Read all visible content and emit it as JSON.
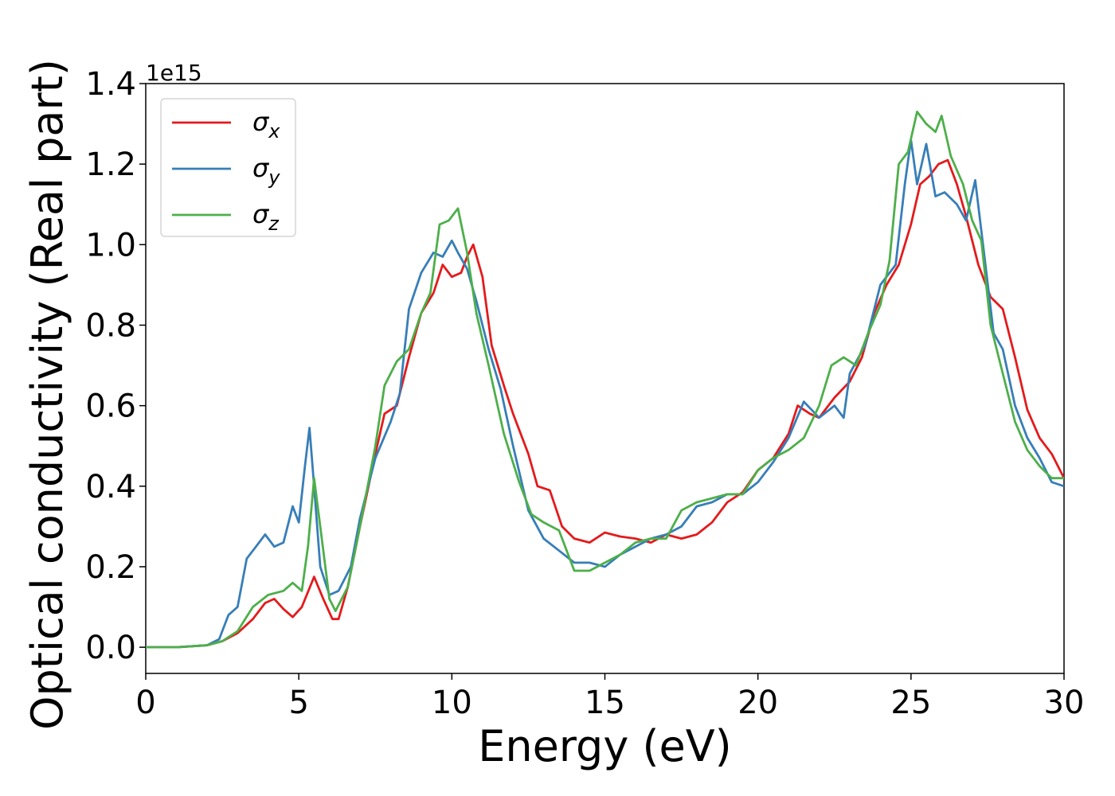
{
  "chart_data": {
    "type": "line",
    "title": "",
    "xlabel": "Energy (eV)",
    "ylabel": "Optical conductivity (Real part)",
    "y_offset_label": "1e15",
    "xlim": [
      0,
      30
    ],
    "ylim": [
      -0.065,
      1.4
    ],
    "x_ticks": [
      0,
      5,
      10,
      15,
      20,
      25,
      30
    ],
    "x_tick_labels": [
      "0",
      "5",
      "10",
      "15",
      "20",
      "25",
      "30"
    ],
    "y_ticks": [
      0.0,
      0.2,
      0.4,
      0.6,
      0.8,
      1.0,
      1.2,
      1.4
    ],
    "y_tick_labels": [
      "0.0",
      "0.2",
      "0.4",
      "0.6",
      "0.8",
      "1.0",
      "1.2",
      "1.4"
    ],
    "grid": false,
    "legend": {
      "placement": "top-left"
    },
    "series": [
      {
        "name": "σ",
        "subscript": "x",
        "color": "#e41a1c",
        "points": [
          [
            0,
            0
          ],
          [
            1,
            0
          ],
          [
            2,
            0.005
          ],
          [
            2.5,
            0.015
          ],
          [
            3,
            0.035
          ],
          [
            3.5,
            0.07
          ],
          [
            3.9,
            0.11
          ],
          [
            4.2,
            0.12
          ],
          [
            4.5,
            0.095
          ],
          [
            4.8,
            0.075
          ],
          [
            5.1,
            0.1
          ],
          [
            5.5,
            0.175
          ],
          [
            5.8,
            0.12
          ],
          [
            6.1,
            0.07
          ],
          [
            6.3,
            0.07
          ],
          [
            6.6,
            0.15
          ],
          [
            7,
            0.3
          ],
          [
            7.5,
            0.48
          ],
          [
            7.8,
            0.58
          ],
          [
            8.2,
            0.6
          ],
          [
            8.6,
            0.72
          ],
          [
            9,
            0.83
          ],
          [
            9.4,
            0.88
          ],
          [
            9.7,
            0.95
          ],
          [
            10,
            0.92
          ],
          [
            10.3,
            0.93
          ],
          [
            10.5,
            0.97
          ],
          [
            10.7,
            1.0
          ],
          [
            11,
            0.92
          ],
          [
            11.3,
            0.75
          ],
          [
            11.7,
            0.65
          ],
          [
            12,
            0.58
          ],
          [
            12.5,
            0.48
          ],
          [
            12.8,
            0.4
          ],
          [
            13.2,
            0.39
          ],
          [
            13.6,
            0.3
          ],
          [
            14,
            0.27
          ],
          [
            14.5,
            0.26
          ],
          [
            15,
            0.285
          ],
          [
            15.5,
            0.275
          ],
          [
            16,
            0.27
          ],
          [
            16.5,
            0.26
          ],
          [
            17,
            0.28
          ],
          [
            17.5,
            0.27
          ],
          [
            18,
            0.28
          ],
          [
            18.5,
            0.31
          ],
          [
            19,
            0.36
          ],
          [
            19.5,
            0.385
          ],
          [
            20,
            0.44
          ],
          [
            20.5,
            0.47
          ],
          [
            21,
            0.53
          ],
          [
            21.3,
            0.6
          ],
          [
            21.7,
            0.58
          ],
          [
            22,
            0.57
          ],
          [
            22.5,
            0.62
          ],
          [
            23,
            0.66
          ],
          [
            23.4,
            0.72
          ],
          [
            23.8,
            0.83
          ],
          [
            24.2,
            0.9
          ],
          [
            24.6,
            0.95
          ],
          [
            25,
            1.05
          ],
          [
            25.3,
            1.15
          ],
          [
            25.6,
            1.17
          ],
          [
            25.9,
            1.2
          ],
          [
            26.2,
            1.21
          ],
          [
            26.5,
            1.15
          ],
          [
            26.8,
            1.07
          ],
          [
            27.2,
            0.95
          ],
          [
            27.6,
            0.87
          ],
          [
            28,
            0.84
          ],
          [
            28.4,
            0.72
          ],
          [
            28.8,
            0.59
          ],
          [
            29.2,
            0.52
          ],
          [
            29.6,
            0.48
          ],
          [
            30,
            0.42
          ]
        ]
      },
      {
        "name": "σ",
        "subscript": "y",
        "color": "#377eb8",
        "points": [
          [
            0,
            0
          ],
          [
            1,
            0
          ],
          [
            2,
            0.005
          ],
          [
            2.4,
            0.02
          ],
          [
            2.7,
            0.08
          ],
          [
            3,
            0.1
          ],
          [
            3.3,
            0.22
          ],
          [
            3.6,
            0.25
          ],
          [
            3.9,
            0.28
          ],
          [
            4.2,
            0.25
          ],
          [
            4.5,
            0.26
          ],
          [
            4.8,
            0.35
          ],
          [
            5,
            0.31
          ],
          [
            5.2,
            0.45
          ],
          [
            5.35,
            0.545
          ],
          [
            5.5,
            0.4
          ],
          [
            5.7,
            0.2
          ],
          [
            6,
            0.13
          ],
          [
            6.3,
            0.14
          ],
          [
            6.7,
            0.2
          ],
          [
            7,
            0.32
          ],
          [
            7.5,
            0.47
          ],
          [
            8,
            0.56
          ],
          [
            8.3,
            0.63
          ],
          [
            8.6,
            0.84
          ],
          [
            9,
            0.93
          ],
          [
            9.4,
            0.98
          ],
          [
            9.7,
            0.97
          ],
          [
            10,
            1.01
          ],
          [
            10.2,
            0.98
          ],
          [
            10.5,
            0.94
          ],
          [
            10.8,
            0.86
          ],
          [
            11.2,
            0.74
          ],
          [
            11.6,
            0.64
          ],
          [
            12,
            0.5
          ],
          [
            12.5,
            0.34
          ],
          [
            13,
            0.27
          ],
          [
            13.5,
            0.24
          ],
          [
            14,
            0.21
          ],
          [
            14.5,
            0.21
          ],
          [
            15,
            0.2
          ],
          [
            15.5,
            0.23
          ],
          [
            16,
            0.25
          ],
          [
            16.5,
            0.27
          ],
          [
            17,
            0.28
          ],
          [
            17.5,
            0.3
          ],
          [
            18,
            0.35
          ],
          [
            18.5,
            0.36
          ],
          [
            19,
            0.38
          ],
          [
            19.5,
            0.38
          ],
          [
            20,
            0.41
          ],
          [
            20.5,
            0.46
          ],
          [
            21,
            0.52
          ],
          [
            21.5,
            0.61
          ],
          [
            22,
            0.57
          ],
          [
            22.5,
            0.6
          ],
          [
            22.8,
            0.57
          ],
          [
            23,
            0.68
          ],
          [
            23.5,
            0.75
          ],
          [
            24,
            0.9
          ],
          [
            24.5,
            0.95
          ],
          [
            24.8,
            1.15
          ],
          [
            25,
            1.26
          ],
          [
            25.2,
            1.15
          ],
          [
            25.5,
            1.25
          ],
          [
            25.8,
            1.12
          ],
          [
            26.1,
            1.13
          ],
          [
            26.5,
            1.1
          ],
          [
            26.8,
            1.06
          ],
          [
            27.1,
            1.16
          ],
          [
            27.4,
            0.97
          ],
          [
            27.7,
            0.78
          ],
          [
            28,
            0.74
          ],
          [
            28.4,
            0.6
          ],
          [
            28.8,
            0.52
          ],
          [
            29.2,
            0.47
          ],
          [
            29.6,
            0.41
          ],
          [
            30,
            0.4
          ]
        ]
      },
      {
        "name": "σ",
        "subscript": "z",
        "color": "#4daf4a",
        "points": [
          [
            0,
            0
          ],
          [
            1,
            0
          ],
          [
            2,
            0.005
          ],
          [
            2.5,
            0.015
          ],
          [
            3,
            0.04
          ],
          [
            3.5,
            0.1
          ],
          [
            4,
            0.13
          ],
          [
            4.5,
            0.14
          ],
          [
            4.8,
            0.16
          ],
          [
            5.1,
            0.14
          ],
          [
            5.3,
            0.25
          ],
          [
            5.5,
            0.42
          ],
          [
            5.7,
            0.3
          ],
          [
            6,
            0.12
          ],
          [
            6.2,
            0.09
          ],
          [
            6.6,
            0.15
          ],
          [
            7,
            0.3
          ],
          [
            7.5,
            0.5
          ],
          [
            7.8,
            0.65
          ],
          [
            8.2,
            0.71
          ],
          [
            8.6,
            0.74
          ],
          [
            9,
            0.83
          ],
          [
            9.3,
            0.88
          ],
          [
            9.6,
            1.05
          ],
          [
            9.9,
            1.06
          ],
          [
            10.2,
            1.09
          ],
          [
            10.5,
            0.98
          ],
          [
            10.8,
            0.83
          ],
          [
            11.2,
            0.7
          ],
          [
            11.7,
            0.53
          ],
          [
            12.2,
            0.41
          ],
          [
            12.6,
            0.33
          ],
          [
            13,
            0.31
          ],
          [
            13.5,
            0.29
          ],
          [
            14,
            0.19
          ],
          [
            14.5,
            0.19
          ],
          [
            15,
            0.21
          ],
          [
            15.5,
            0.23
          ],
          [
            16,
            0.26
          ],
          [
            16.5,
            0.27
          ],
          [
            17,
            0.27
          ],
          [
            17.5,
            0.34
          ],
          [
            18,
            0.36
          ],
          [
            18.5,
            0.37
          ],
          [
            19,
            0.38
          ],
          [
            19.5,
            0.38
          ],
          [
            20,
            0.44
          ],
          [
            20.5,
            0.47
          ],
          [
            21,
            0.49
          ],
          [
            21.5,
            0.52
          ],
          [
            22,
            0.6
          ],
          [
            22.4,
            0.7
          ],
          [
            22.8,
            0.72
          ],
          [
            23.2,
            0.7
          ],
          [
            23.6,
            0.78
          ],
          [
            24,
            0.85
          ],
          [
            24.3,
            0.96
          ],
          [
            24.6,
            1.2
          ],
          [
            24.9,
            1.23
          ],
          [
            25.2,
            1.33
          ],
          [
            25.5,
            1.3
          ],
          [
            25.8,
            1.28
          ],
          [
            26,
            1.32
          ],
          [
            26.3,
            1.22
          ],
          [
            26.7,
            1.15
          ],
          [
            27,
            1.06
          ],
          [
            27.3,
            1.01
          ],
          [
            27.6,
            0.8
          ],
          [
            28,
            0.68
          ],
          [
            28.4,
            0.56
          ],
          [
            28.8,
            0.49
          ],
          [
            29.2,
            0.45
          ],
          [
            29.6,
            0.42
          ],
          [
            30,
            0.42
          ]
        ]
      }
    ]
  }
}
